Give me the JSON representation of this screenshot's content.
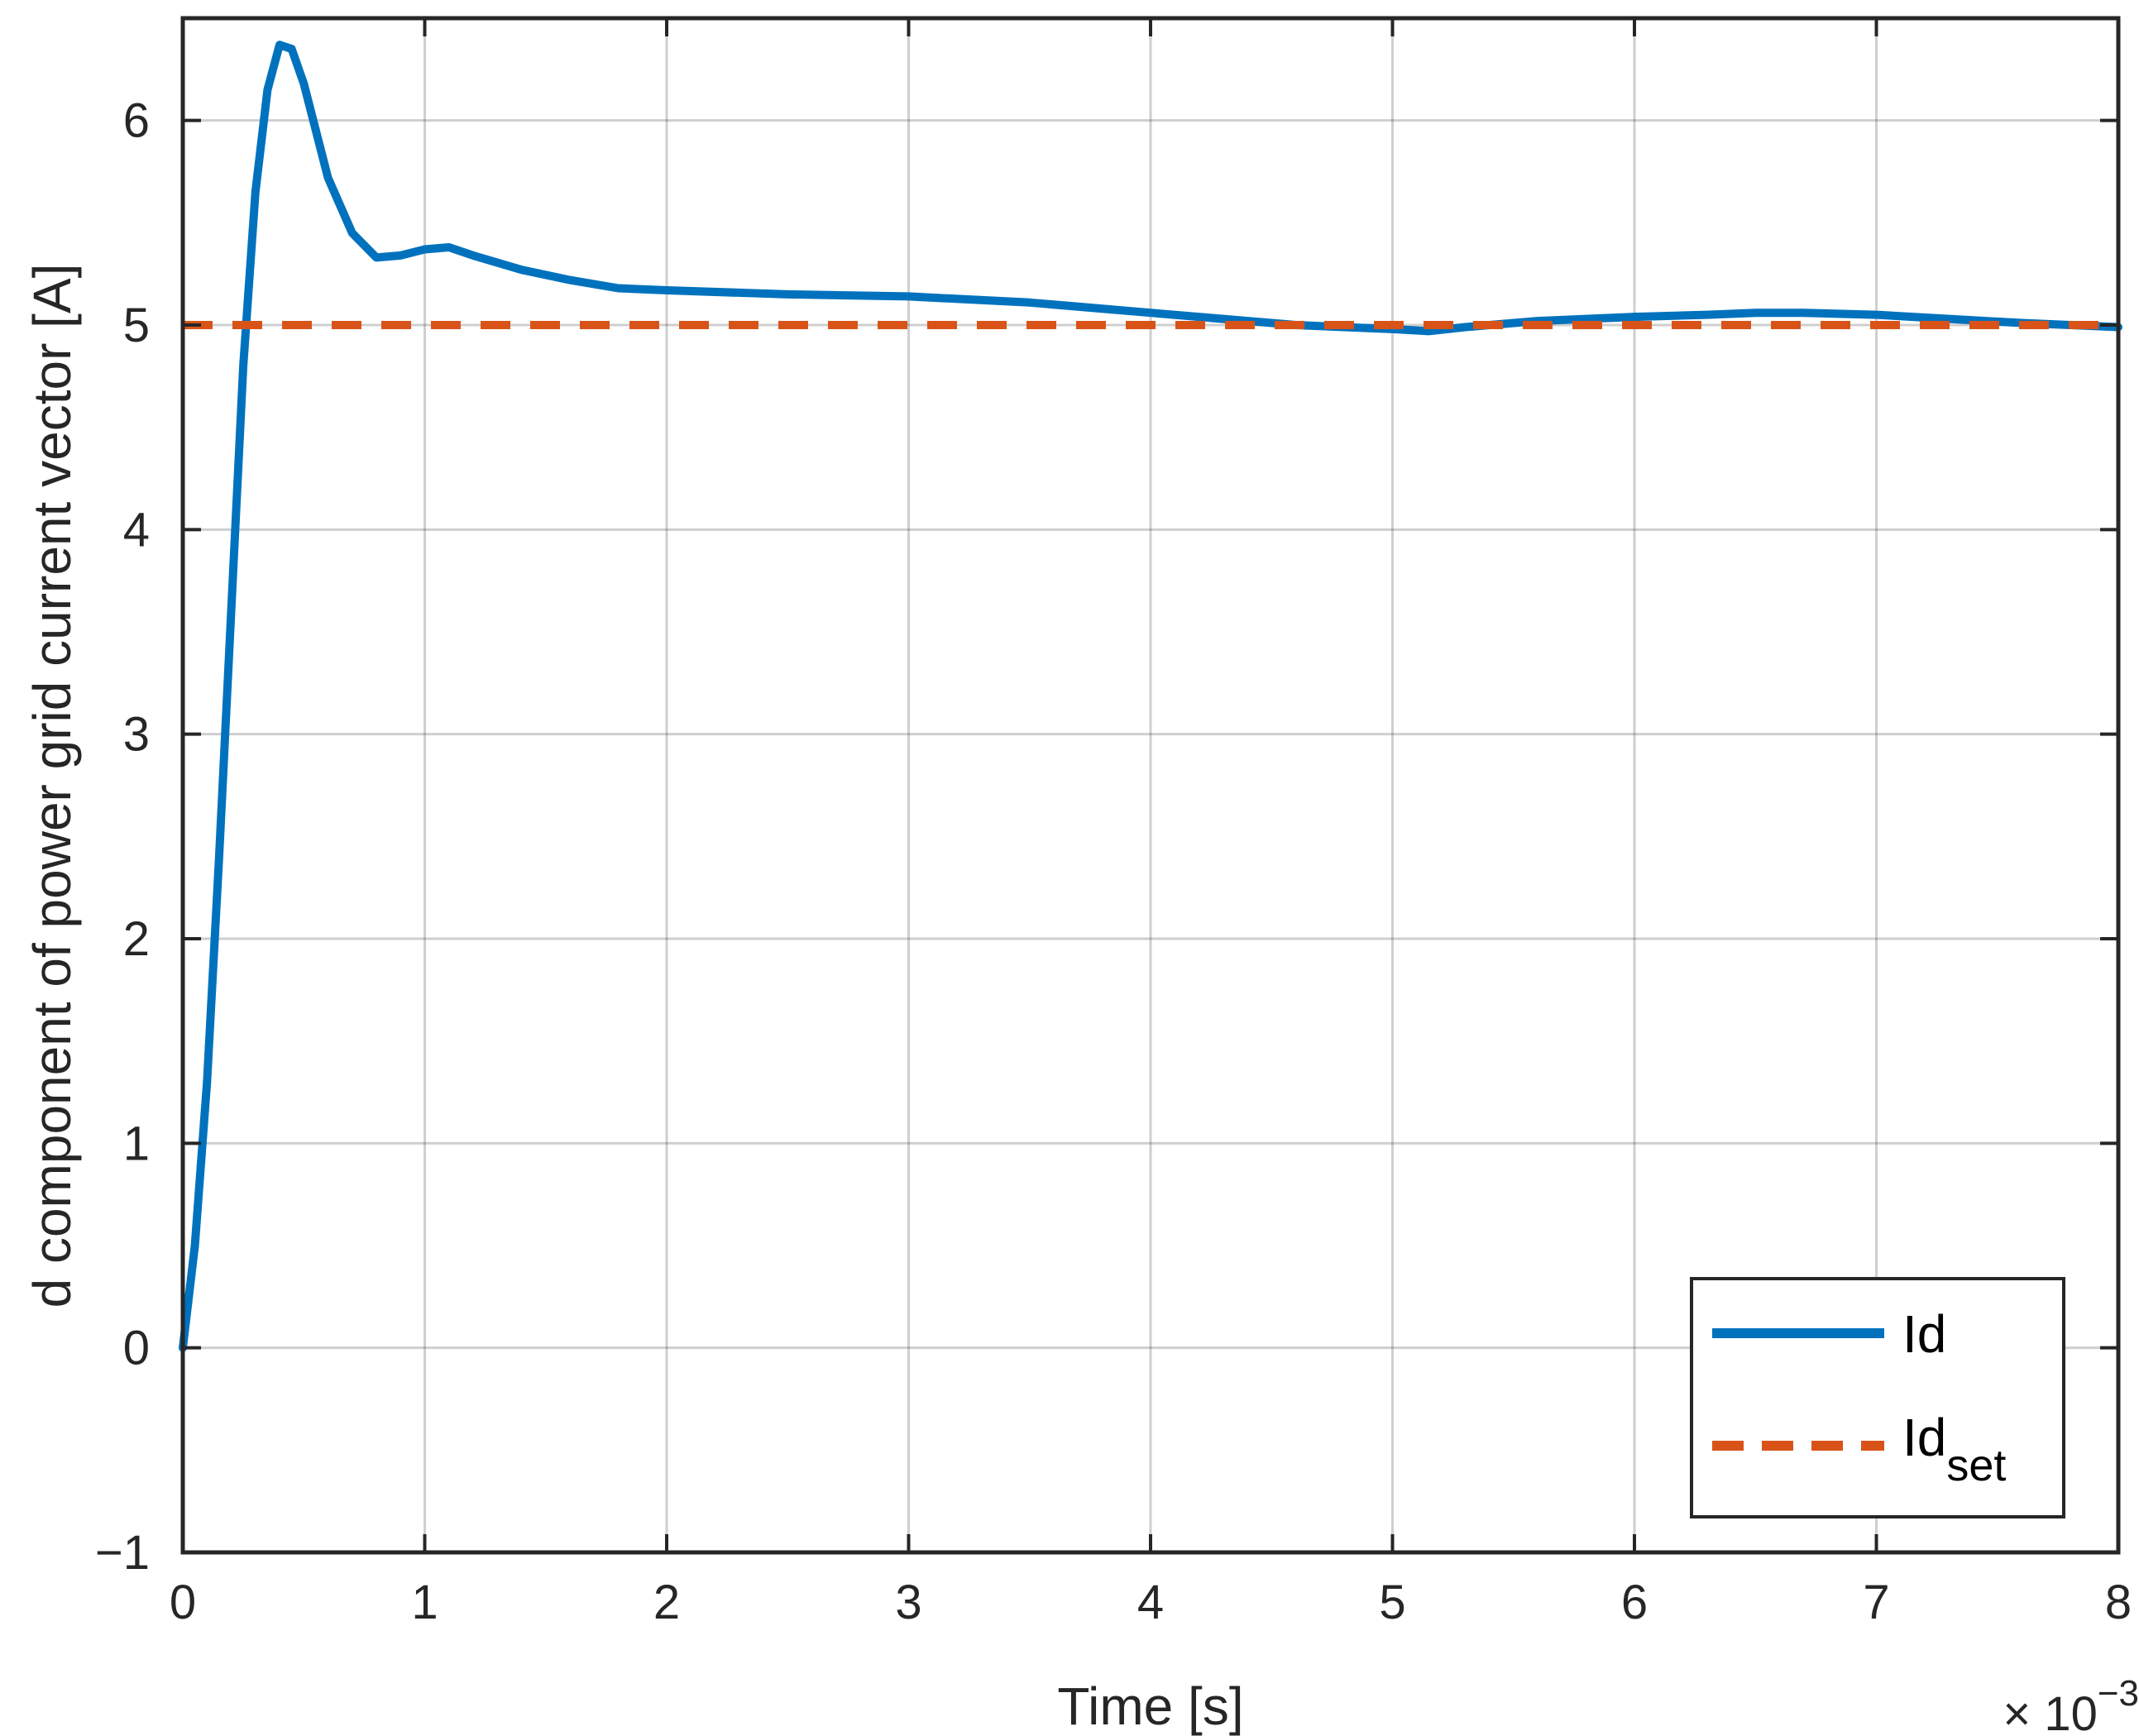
{
  "chart_data": {
    "type": "line",
    "xlabel": "Time [s]",
    "ylabel": "d component of power grid current vector [A]",
    "x_exponent_label": {
      "prefix": "× 10",
      "exponent": "−3"
    },
    "xlim": [
      0,
      8
    ],
    "ylim": [
      -1,
      6.5
    ],
    "xticks": [
      0,
      1,
      2,
      3,
      4,
      5,
      6,
      7,
      8
    ],
    "yticks": [
      -1,
      0,
      1,
      2,
      3,
      4,
      5,
      6
    ],
    "xtick_labels": [
      "0",
      "1",
      "2",
      "3",
      "4",
      "5",
      "6",
      "7",
      "8"
    ],
    "ytick_labels": [
      "−1",
      "0",
      "1",
      "2",
      "3",
      "4",
      "5",
      "6"
    ],
    "grid": true,
    "legend_position": "bottom-right",
    "series": [
      {
        "name": "Id",
        "color": "#0072bd",
        "style": "solid",
        "x": [
          0,
          0.05,
          0.1,
          0.15,
          0.2,
          0.25,
          0.3,
          0.35,
          0.4,
          0.45,
          0.5,
          0.55,
          0.6,
          0.7,
          0.8,
          0.9,
          1.0,
          1.1,
          1.2,
          1.4,
          1.6,
          1.8,
          2.0,
          2.5,
          3.0,
          3.5,
          4.0,
          4.3,
          4.6,
          4.8,
          5.0,
          5.15,
          5.3,
          5.6,
          6.0,
          6.3,
          6.5,
          6.7,
          7.0,
          7.3,
          7.6,
          8.0
        ],
        "y": [
          0.0,
          0.5,
          1.3,
          2.4,
          3.6,
          4.8,
          5.65,
          6.15,
          6.37,
          6.35,
          6.18,
          5.95,
          5.72,
          5.45,
          5.33,
          5.34,
          5.37,
          5.38,
          5.34,
          5.27,
          5.22,
          5.18,
          5.17,
          5.15,
          5.14,
          5.11,
          5.06,
          5.03,
          5.0,
          4.99,
          4.98,
          4.97,
          4.99,
          5.02,
          5.04,
          5.05,
          5.06,
          5.06,
          5.05,
          5.03,
          5.01,
          4.99
        ]
      },
      {
        "name": "Id_set",
        "legend_main": "Id",
        "legend_sub": "set",
        "color": "#d95319",
        "style": "dashed",
        "x": [
          0,
          8
        ],
        "y": [
          5,
          5
        ]
      }
    ]
  }
}
